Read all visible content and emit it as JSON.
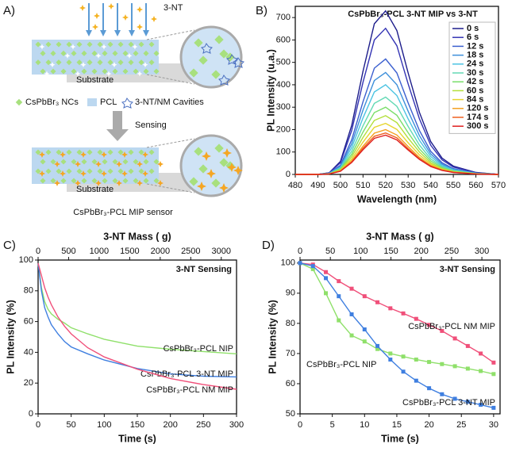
{
  "panel_labels": [
    "A)",
    "B)",
    "C)",
    "D)"
  ],
  "diagram": {
    "analyte": "3-NT",
    "substrate_top": "Substrate",
    "substrate_bottom": "Substrate",
    "legend": [
      "CsPbBr₃ NCs",
      "PCL",
      "3-NT/NM Cavities"
    ],
    "step": "Sensing",
    "caption": "CsPbBr₃-PCL MIP sensor"
  },
  "chart_data": [
    {
      "type": "line",
      "title": "CsPbBr₃-PCL 3-NT MIP vs 3-NT",
      "x_label": "Wavelength (nm)",
      "y_label": "PL Intensity (u.a.)",
      "x": [
        480,
        490,
        495,
        500,
        505,
        510,
        515,
        520,
        525,
        530,
        535,
        540,
        545,
        550,
        560,
        570
      ],
      "xlim": [
        480,
        570
      ],
      "xticks": [
        480,
        490,
        500,
        510,
        520,
        530,
        540,
        550,
        560,
        570
      ],
      "ylim": [
        0,
        750
      ],
      "yticks": [
        0,
        100,
        200,
        300,
        400,
        500,
        600,
        700
      ],
      "legend": "upper right",
      "series": [
        {
          "name": "0 s",
          "color": "#1c1c8a",
          "values": [
            0,
            0,
            7,
            58,
            219,
            460,
            672,
            730,
            642,
            453,
            277,
            146,
            73,
            37,
            9,
            0
          ]
        },
        {
          "name": "6 s",
          "color": "#3434b4",
          "values": [
            0,
            0,
            7,
            52,
            196,
            411,
            600,
            652,
            574,
            404,
            248,
            130,
            65,
            33,
            8,
            0
          ]
        },
        {
          "name": "12 s",
          "color": "#3b5fcf",
          "values": [
            0,
            0,
            5,
            41,
            155,
            324,
            474,
            515,
            453,
            319,
            196,
            103,
            52,
            26,
            6,
            0
          ]
        },
        {
          "name": "18 s",
          "color": "#3d8fda",
          "values": [
            0,
            0,
            5,
            36,
            137,
            287,
            419,
            455,
            400,
            282,
            173,
            91,
            46,
            23,
            5,
            0
          ]
        },
        {
          "name": "24 s",
          "color": "#4cc3e2",
          "values": [
            0,
            0,
            4,
            32,
            120,
            252,
            368,
            400,
            352,
            248,
            152,
            80,
            40,
            20,
            5,
            0
          ]
        },
        {
          "name": "30 s",
          "color": "#62d9b4",
          "values": [
            0,
            0,
            3,
            28,
            104,
            217,
            317,
            345,
            304,
            214,
            131,
            69,
            35,
            17,
            4,
            0
          ]
        },
        {
          "name": "42 s",
          "color": "#7ade6a",
          "values": [
            0,
            0,
            3,
            24,
            90,
            189,
            276,
            300,
            264,
            186,
            114,
            60,
            30,
            15,
            4,
            0
          ]
        },
        {
          "name": "60 s",
          "color": "#b2df3a",
          "values": [
            0,
            0,
            3,
            21,
            79,
            165,
            241,
            262,
            231,
            162,
            100,
            52,
            26,
            13,
            3,
            0
          ]
        },
        {
          "name": "84 s",
          "color": "#e6d52e",
          "values": [
            0,
            0,
            2,
            18,
            68,
            144,
            210,
            228,
            201,
            141,
            87,
            46,
            23,
            11,
            3,
            0
          ]
        },
        {
          "name": "120 s",
          "color": "#f4a020",
          "values": [
            0,
            0,
            2,
            16,
            60,
            126,
            184,
            200,
            176,
            124,
            76,
            40,
            20,
            10,
            2,
            0
          ]
        },
        {
          "name": "174 s",
          "color": "#ef6020",
          "values": [
            0,
            0,
            2,
            15,
            56,
            117,
            170,
            185,
            163,
            115,
            70,
            37,
            19,
            9,
            2,
            0
          ]
        },
        {
          "name": "300 s",
          "color": "#de2020",
          "values": [
            0,
            0,
            2,
            14,
            53,
            110,
            161,
            175,
            154,
            109,
            67,
            35,
            18,
            9,
            2,
            0
          ]
        }
      ]
    },
    {
      "type": "line",
      "annotation": "3-NT Sensing",
      "x_label": "Time (s)",
      "y_label": "PL Intensity (%)",
      "x2_label": "3-NT Mass (  g)",
      "x": [
        0,
        5,
        10,
        15,
        20,
        30,
        40,
        50,
        75,
        100,
        150,
        200,
        250,
        300
      ],
      "xlim": [
        0,
        300
      ],
      "xticks": [
        0,
        50,
        100,
        150,
        200,
        250,
        300
      ],
      "x2lim": [
        0,
        3250
      ],
      "x2ticks": [
        0,
        500,
        1000,
        1500,
        2000,
        2500,
        3000
      ],
      "ylim": [
        0,
        100
      ],
      "yticks": [
        0,
        20,
        40,
        60,
        80,
        100
      ],
      "series": [
        {
          "name": "CsPbBr₃-PCL NIP",
          "color": "#8fe06a",
          "values": [
            98,
            82,
            73,
            68,
            65,
            61.5,
            59,
            56,
            52,
            48.5,
            44,
            42,
            40.5,
            39
          ]
        },
        {
          "name": "CsPbBr₃-PCL 3-NT MIP",
          "color": "#3f7fe0",
          "values": [
            98,
            80,
            69,
            63,
            58,
            52,
            47,
            43.5,
            39,
            35,
            29.5,
            26,
            24.5,
            24
          ]
        },
        {
          "name": "CsPbBr₃-PCL NM MIP",
          "color": "#f0507a",
          "values": [
            98,
            90,
            82,
            76,
            71,
            63,
            57,
            52,
            43,
            37,
            29,
            23,
            19,
            16
          ]
        }
      ]
    },
    {
      "type": "line",
      "markers": "square",
      "annotation": "3-NT Sensing",
      "x_label": "Time (s)",
      "y_label": "PL Intensity (%)",
      "x2_label": "3-NT Mass (  g)",
      "x": [
        0,
        2,
        4,
        6,
        8,
        10,
        12,
        14,
        16,
        18,
        20,
        22,
        24,
        26,
        28,
        30
      ],
      "xlim": [
        0,
        31
      ],
      "xticks": [
        0,
        5,
        10,
        15,
        20,
        25,
        30
      ],
      "x2lim": [
        0,
        330
      ],
      "x2ticks": [
        0,
        50,
        100,
        150,
        200,
        250,
        300
      ],
      "ylim": [
        50,
        101
      ],
      "yticks": [
        50,
        60,
        70,
        80,
        90,
        100
      ],
      "series": [
        {
          "name": "CsPbBr₃-PCL NM MIP",
          "color": "#f0507a",
          "values": [
            100,
            99.5,
            97,
            94,
            91.5,
            89,
            87,
            85,
            83.3,
            81.5,
            79.5,
            77.5,
            75,
            72.5,
            70,
            67
          ]
        },
        {
          "name": "CsPbBr₃-PCL NIP",
          "color": "#8fe06a",
          "values": [
            100,
            98,
            90,
            81,
            76,
            74,
            71.5,
            70,
            69,
            68,
            67.2,
            66.5,
            65.8,
            65,
            64.2,
            63.2
          ]
        },
        {
          "name": "CsPbBr₃-PCL 3-NT MIP",
          "color": "#3f7fe0",
          "values": [
            100,
            99,
            95,
            89,
            83,
            78,
            72.5,
            68,
            64,
            61,
            58.5,
            56.5,
            55,
            54,
            53,
            52
          ]
        }
      ]
    }
  ]
}
